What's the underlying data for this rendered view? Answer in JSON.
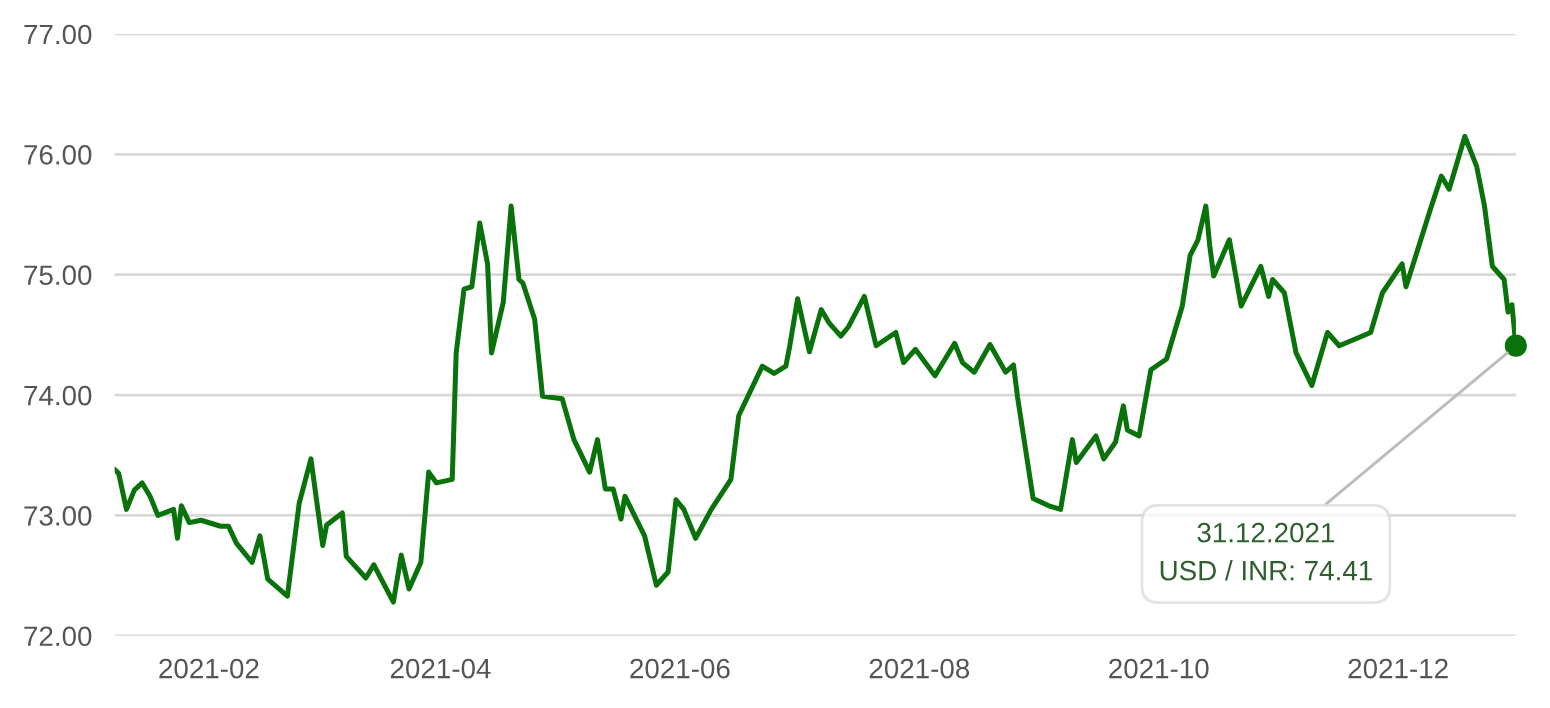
{
  "chart_data": {
    "type": "line",
    "color": "#0a720a",
    "marker": "none",
    "line_style": "solid",
    "grid": "y",
    "legend": false,
    "xlim": [
      "2021-01-08",
      "2021-12-31"
    ],
    "ylim": [
      72,
      77
    ],
    "xticks": [
      {
        "value": "2021-02-01",
        "label": "2021-02"
      },
      {
        "value": "2021-04-01",
        "label": "2021-04"
      },
      {
        "value": "2021-06-01",
        "label": "2021-06"
      },
      {
        "value": "2021-08-01",
        "label": "2021-08"
      },
      {
        "value": "2021-10-01",
        "label": "2021-10"
      },
      {
        "value": "2021-12-01",
        "label": "2021-12"
      }
    ],
    "yticks": [
      {
        "value": 72,
        "label": "72.00"
      },
      {
        "value": 73,
        "label": "73.00"
      },
      {
        "value": 74,
        "label": "74.00"
      },
      {
        "value": 75,
        "label": "75.00"
      },
      {
        "value": 76,
        "label": "76.00"
      },
      {
        "value": 77,
        "label": "77.00"
      }
    ],
    "x": [
      "2021-01-08",
      "2021-01-09",
      "2021-01-11",
      "2021-01-13",
      "2021-01-15",
      "2021-01-17",
      "2021-01-19",
      "2021-01-23",
      "2021-01-24",
      "2021-01-25",
      "2021-01-27",
      "2021-01-30",
      "2021-02-04",
      "2021-02-06",
      "2021-02-08",
      "2021-02-12",
      "2021-02-14",
      "2021-02-16",
      "2021-02-21",
      "2021-02-24",
      "2021-02-27",
      "2021-03-02",
      "2021-03-03",
      "2021-03-07",
      "2021-03-08",
      "2021-03-13",
      "2021-03-15",
      "2021-03-20",
      "2021-03-22",
      "2021-03-24",
      "2021-03-27",
      "2021-03-29",
      "2021-03-31",
      "2021-04-04",
      "2021-04-05",
      "2021-04-07",
      "2021-04-09",
      "2021-04-11",
      "2021-04-13",
      "2021-04-14",
      "2021-04-17",
      "2021-04-19",
      "2021-04-21",
      "2021-04-22",
      "2021-04-25",
      "2021-04-27",
      "2021-05-02",
      "2021-05-05",
      "2021-05-09",
      "2021-05-11",
      "2021-05-13",
      "2021-05-15",
      "2021-05-17",
      "2021-05-18",
      "2021-05-23",
      "2021-05-26",
      "2021-05-29",
      "2021-05-31",
      "2021-06-02",
      "2021-06-05",
      "2021-06-09",
      "2021-06-14",
      "2021-06-16",
      "2021-06-22",
      "2021-06-25",
      "2021-06-28",
      "2021-06-29",
      "2021-07-01",
      "2021-07-04",
      "2021-07-07",
      "2021-07-09",
      "2021-07-12",
      "2021-07-14",
      "2021-07-18",
      "2021-07-21",
      "2021-07-26",
      "2021-07-28",
      "2021-07-31",
      "2021-08-05",
      "2021-08-10",
      "2021-08-12",
      "2021-08-15",
      "2021-08-19",
      "2021-08-23",
      "2021-08-25",
      "2021-08-26",
      "2021-08-30",
      "2021-09-03",
      "2021-09-06",
      "2021-09-09",
      "2021-09-10",
      "2021-09-15",
      "2021-09-17",
      "2021-09-20",
      "2021-09-22",
      "2021-09-23",
      "2021-09-26",
      "2021-09-29",
      "2021-10-03",
      "2021-10-07",
      "2021-10-09",
      "2021-10-11",
      "2021-10-13",
      "2021-10-14",
      "2021-10-15",
      "2021-10-19",
      "2021-10-22",
      "2021-10-27",
      "2021-10-29",
      "2021-10-30",
      "2021-11-02",
      "2021-11-05",
      "2021-11-09",
      "2021-11-13",
      "2021-11-16",
      "2021-11-24",
      "2021-11-27",
      "2021-12-02",
      "2021-12-03",
      "2021-12-09",
      "2021-12-12",
      "2021-12-14",
      "2021-12-18",
      "2021-12-21",
      "2021-12-23",
      "2021-12-25",
      "2021-12-28",
      "2021-12-29",
      "2021-12-30",
      "2021-12-31"
    ],
    "values": [
      73.38,
      73.35,
      73.05,
      73.21,
      73.27,
      73.16,
      73.0,
      73.05,
      72.81,
      73.08,
      72.94,
      72.96,
      72.91,
      72.91,
      72.77,
      72.61,
      72.83,
      72.47,
      72.33,
      73.1,
      73.47,
      72.75,
      72.92,
      73.02,
      72.66,
      72.48,
      72.59,
      72.28,
      72.67,
      72.39,
      72.61,
      73.36,
      73.27,
      73.3,
      74.35,
      74.88,
      74.9,
      75.43,
      75.09,
      74.35,
      74.77,
      75.57,
      74.96,
      74.93,
      74.63,
      73.99,
      73.97,
      73.63,
      73.36,
      73.63,
      73.22,
      73.22,
      72.97,
      73.16,
      72.83,
      72.42,
      72.53,
      73.13,
      73.05,
      72.81,
      73.05,
      73.3,
      73.83,
      74.24,
      74.18,
      74.24,
      74.41,
      74.8,
      74.36,
      74.71,
      74.6,
      74.49,
      74.57,
      74.82,
      74.41,
      74.52,
      74.27,
      74.38,
      74.16,
      74.43,
      74.27,
      74.19,
      74.42,
      74.19,
      74.25,
      73.99,
      73.14,
      73.08,
      73.05,
      73.63,
      73.44,
      73.66,
      73.47,
      73.61,
      73.91,
      73.71,
      73.66,
      74.21,
      74.3,
      74.74,
      75.16,
      75.29,
      75.57,
      75.24,
      74.99,
      75.29,
      74.74,
      75.07,
      74.82,
      74.96,
      74.85,
      74.35,
      74.08,
      74.52,
      74.41,
      74.52,
      74.85,
      75.09,
      74.9,
      75.52,
      75.82,
      75.71,
      76.15,
      75.9,
      75.57,
      75.07,
      74.96,
      74.69,
      74.75,
      74.41
    ],
    "annotations": [
      {
        "text": "31.12.2021\nUSD / INR: 74.41",
        "x": "2021-12-31",
        "y": 74.41
      }
    ]
  }
}
